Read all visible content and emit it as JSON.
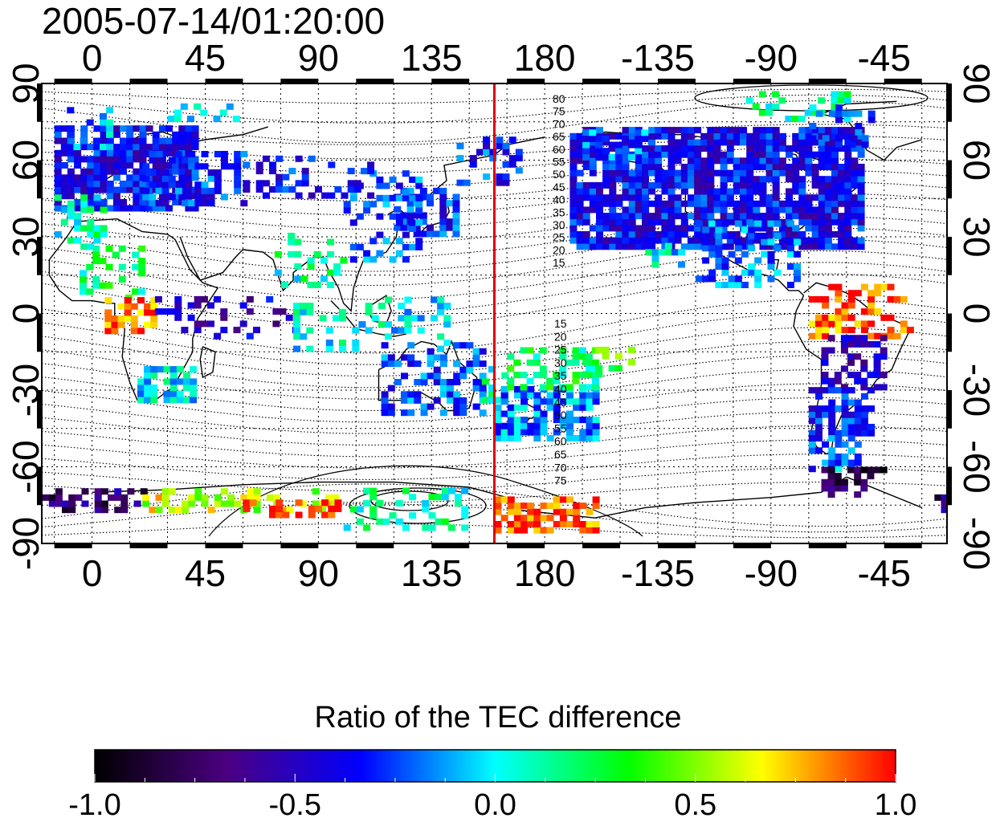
{
  "title": "2005-07-14/01:20:00",
  "map": {
    "lon_ticks": [
      "0",
      "45",
      "90",
      "135",
      "180",
      "-135",
      "-90",
      "-45"
    ],
    "lat_ticks": [
      "90",
      "60",
      "30",
      "0",
      "-30",
      "-60",
      "-90"
    ],
    "meridian_marker": {
      "longitude": 160,
      "color": "#e00000"
    },
    "contour_labels_north": [
      "80",
      "75",
      "70",
      "65",
      "60",
      "55",
      "50",
      "45",
      "40",
      "35",
      "30",
      "25",
      "20",
      "15"
    ],
    "contour_labels_south": [
      "15",
      "20",
      "25",
      "30",
      "35",
      "40",
      "45",
      "50",
      "55",
      "60",
      "65",
      "70",
      "75"
    ],
    "grid": true
  },
  "colorbar": {
    "title": "Ratio of the TEC difference",
    "range": [
      -1.0,
      1.0
    ],
    "tick_labels": [
      "-1.0",
      "-0.5",
      "0.0",
      "0.5",
      "1.0"
    ],
    "colors": [
      "#000000",
      "#4b0082",
      "#0000ff",
      "#00ffff",
      "#00ff00",
      "#ffff00",
      "#ff0000"
    ]
  }
}
